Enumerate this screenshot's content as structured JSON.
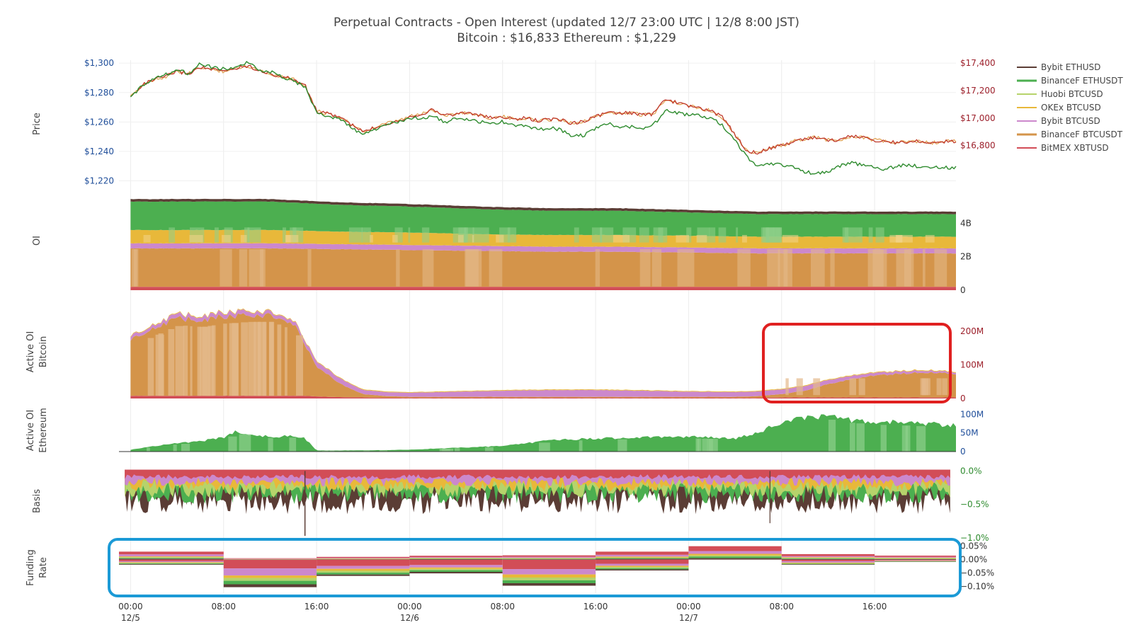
{
  "header": {
    "title": "Perpetual Contracts - Open Interest   (updated   12/7 23:00 UTC   |   12/8 8:00 JST)",
    "subtitle": "Bitcoin : $16,833     Ethereum : $1,229"
  },
  "colors": {
    "bybit_ethusd": "#5b3d35",
    "binancef_ethusdt": "#4caf50",
    "binancef_ethusdt_light": "#8fd08b",
    "huobi_btcusd": "#b6d36b",
    "okex_btcusd": "#e8b83a",
    "okex_btcusd_light": "#f2d48a",
    "bybit_btcusd": "#cc88cc",
    "bybit_btcusd_light": "#dfa9df",
    "binancef_btcusdt": "#d4944a",
    "binancef_btcusdt_light": "#e4b98b",
    "bitmex_xbtusd": "#d24d57",
    "eth_price_line": "#2e8b2e",
    "btc_price_line": "#c0392b",
    "eth_axis": "#1f4e9a",
    "btc_axis": "#9c1f2a",
    "basis_axis": "#2e8b2e",
    "red_box": "#e02020",
    "blue_box": "#1b9ad6"
  },
  "chart_data": {
    "type": "area",
    "x_ticks": [
      {
        "time": "00:00",
        "date": "12/5"
      },
      {
        "time": "08:00",
        "date": ""
      },
      {
        "time": "16:00",
        "date": ""
      },
      {
        "time": "00:00",
        "date": "12/6"
      },
      {
        "time": "08:00",
        "date": ""
      },
      {
        "time": "16:00",
        "date": ""
      },
      {
        "time": "00:00",
        "date": "12/7"
      },
      {
        "time": "08:00",
        "date": ""
      },
      {
        "time": "16:00",
        "date": ""
      }
    ],
    "x_range_hours": [
      -1,
      71
    ],
    "legend": {
      "placement": "right",
      "entries": [
        "Bybit ETHUSD",
        "BinanceF ETHUSDT",
        "Huobi BTCUSD",
        "OKEx BTCUSD",
        "Bybit BTCUSD",
        "BinanceF BTCUSDT",
        "BitMEX XBTUSD"
      ]
    },
    "panels": {
      "price": {
        "ylabel": "Price",
        "left_ticks": [
          "$1,300",
          "$1,280",
          "$1,260",
          "$1,240",
          "$1,220"
        ],
        "left_range": [
          1214,
          1302
        ],
        "right_ticks": [
          "$17,400",
          "$17,200",
          "$17,000",
          "$16,800"
        ],
        "right_range": [
          16480,
          17420
        ],
        "hours": [
          0,
          1,
          2,
          3,
          4,
          5,
          6,
          7,
          8,
          9,
          10,
          11,
          12,
          13,
          14,
          15,
          16,
          17,
          18,
          19,
          20,
          21,
          22,
          23,
          24,
          25,
          26,
          27,
          28,
          29,
          30,
          31,
          32,
          33,
          34,
          35,
          36,
          37,
          38,
          39,
          40,
          41,
          42,
          43,
          44,
          45,
          46,
          47,
          48,
          49,
          50,
          51,
          52,
          53,
          54,
          55,
          56,
          57,
          58,
          59,
          60,
          61,
          62,
          63,
          64,
          65,
          66,
          67,
          68,
          69,
          70,
          71
        ],
        "eth": [
          1276,
          1285,
          1290,
          1292,
          1296,
          1293,
          1300,
          1297,
          1296,
          1297,
          1300,
          1296,
          1294,
          1291,
          1288,
          1284,
          1266,
          1264,
          1262,
          1256,
          1251,
          1255,
          1258,
          1260,
          1262,
          1263,
          1264,
          1260,
          1262,
          1262,
          1260,
          1259,
          1260,
          1257,
          1258,
          1255,
          1256,
          1255,
          1250,
          1251,
          1256,
          1259,
          1257,
          1257,
          1256,
          1258,
          1268,
          1266,
          1265,
          1264,
          1263,
          1257,
          1248,
          1236,
          1229,
          1232,
          1231,
          1229,
          1226,
          1225,
          1226,
          1230,
          1232,
          1231,
          1229,
          1228,
          1230,
          1231,
          1229,
          1230,
          1229,
          1229
        ],
        "btc": [
          17150,
          17240,
          17280,
          17300,
          17340,
          17320,
          17370,
          17350,
          17340,
          17360,
          17380,
          17350,
          17320,
          17300,
          17280,
          17240,
          17050,
          17030,
          17010,
          16950,
          16900,
          16930,
          16960,
          16980,
          17010,
          17030,
          17060,
          17020,
          17030,
          17040,
          17020,
          17000,
          17010,
          16990,
          17000,
          16980,
          16990,
          16990,
          16960,
          16980,
          17010,
          17040,
          17030,
          17040,
          17020,
          17030,
          17140,
          17110,
          17090,
          17070,
          17050,
          17000,
          16880,
          16760,
          16750,
          16780,
          16800,
          16830,
          16850,
          16860,
          16840,
          16840,
          16870,
          16860,
          16840,
          16830,
          16820,
          16830,
          16830,
          16820,
          16830,
          16833
        ]
      },
      "oi": {
        "ylabel": "OI",
        "ticks": [
          "4B",
          "2B",
          "0"
        ],
        "range": [
          0,
          5.5
        ],
        "hours": [
          0,
          6,
          12,
          18,
          24,
          30,
          36,
          42,
          48,
          54,
          60,
          66,
          71
        ],
        "bitmex_xbtusd": [
          0.2,
          0.2,
          0.2,
          0.2,
          0.2,
          0.2,
          0.2,
          0.2,
          0.2,
          0.2,
          0.2,
          0.2,
          0.2
        ],
        "binancef_btcusdt": [
          2.3,
          2.3,
          2.3,
          2.25,
          2.2,
          2.15,
          2.1,
          2.1,
          2.05,
          2.0,
          2.0,
          2.0,
          2.0
        ],
        "bybit_btcusd": [
          0.3,
          0.3,
          0.3,
          0.3,
          0.3,
          0.3,
          0.3,
          0.3,
          0.3,
          0.3,
          0.3,
          0.3,
          0.3
        ],
        "okex_btcusd": [
          0.8,
          0.8,
          0.8,
          0.75,
          0.75,
          0.7,
          0.7,
          0.7,
          0.7,
          0.7,
          0.7,
          0.7,
          0.7
        ],
        "binancef_ethusdt": [
          1.7,
          1.7,
          1.7,
          1.6,
          1.55,
          1.5,
          1.45,
          1.45,
          1.4,
          1.35,
          1.35,
          1.35,
          1.35
        ],
        "bybit_ethusd": [
          0.15,
          0.15,
          0.15,
          0.15,
          0.15,
          0.15,
          0.15,
          0.15,
          0.15,
          0.15,
          0.15,
          0.15,
          0.15
        ]
      },
      "active_oi_btc": {
        "ylabel": "Active OI\nBitcoin",
        "ticks": [
          "200M",
          "100M",
          "0"
        ],
        "range": [
          0,
          290
        ],
        "hours": [
          0,
          2,
          4,
          6,
          8,
          10,
          12,
          14,
          15,
          16,
          18,
          20,
          22,
          24,
          28,
          32,
          36,
          40,
          44,
          48,
          52,
          54,
          56,
          58,
          60,
          62,
          64,
          66,
          68,
          70,
          71
        ],
        "binancef_btcusdt": [
          170,
          200,
          230,
          225,
          235,
          240,
          240,
          215,
          150,
          90,
          40,
          10,
          5,
          3,
          3,
          3,
          3,
          3,
          3,
          3,
          3,
          5,
          10,
          20,
          40,
          55,
          65,
          70,
          75,
          72,
          70
        ],
        "bybit_btcusd": [
          10,
          10,
          12,
          12,
          12,
          12,
          10,
          10,
          12,
          15,
          15,
          12,
          12,
          12,
          15,
          18,
          20,
          20,
          18,
          15,
          14,
          14,
          14,
          14,
          12,
          10,
          8,
          7,
          6,
          5,
          5
        ],
        "bitmex_xbtusd": [
          8,
          8,
          8,
          8,
          8,
          8,
          8,
          8,
          8,
          6,
          4,
          3,
          2,
          2,
          2,
          2,
          2,
          2,
          2,
          2,
          2,
          2,
          3,
          3,
          3,
          3,
          3,
          3,
          3,
          3,
          3
        ]
      },
      "active_oi_eth": {
        "ylabel": "Active OI\nEthereum",
        "ticks": [
          "100M",
          "50M",
          "0"
        ],
        "range": [
          0,
          110
        ],
        "hours": [
          0,
          2,
          4,
          6,
          8,
          9,
          10,
          12,
          14,
          15,
          16,
          18,
          20,
          22,
          24,
          28,
          32,
          34,
          36,
          40,
          44,
          48,
          52,
          54,
          56,
          58,
          60,
          62,
          64,
          66,
          68,
          70,
          71
        ],
        "binancef_ethusdt": [
          5,
          15,
          22,
          28,
          38,
          55,
          45,
          40,
          42,
          35,
          3,
          3,
          3,
          4,
          5,
          10,
          15,
          22,
          30,
          35,
          38,
          40,
          35,
          50,
          80,
          90,
          95,
          85,
          80,
          78,
          75,
          72,
          70
        ]
      },
      "basis": {
        "ylabel": "Basis",
        "ticks": [
          "0.0%",
          "−0.5%",
          "−1.0%"
        ],
        "range": [
          -1.0,
          0.1
        ],
        "spike_low": -0.97
      },
      "funding_rate": {
        "ylabel": "Funding\nRate",
        "ticks": [
          "0.05%",
          "0.00%",
          "−0.05%",
          "−0.10%"
        ],
        "range": [
          -0.12,
          0.065
        ],
        "periods_hours": [
          [
            -1,
            8
          ],
          [
            8,
            16
          ],
          [
            16,
            24
          ],
          [
            24,
            32
          ],
          [
            32,
            40
          ],
          [
            40,
            48
          ],
          [
            48,
            56
          ],
          [
            56,
            64
          ],
          [
            64,
            71
          ]
        ],
        "mean_negative": [
          -0.02,
          -0.1,
          -0.06,
          -0.05,
          -0.09,
          -0.04,
          0.01,
          -0.02,
          -0.01
        ],
        "mean_positive": [
          0.03,
          0.005,
          0.01,
          0.015,
          0.015,
          0.03,
          0.05,
          0.02,
          0.015
        ]
      }
    }
  }
}
